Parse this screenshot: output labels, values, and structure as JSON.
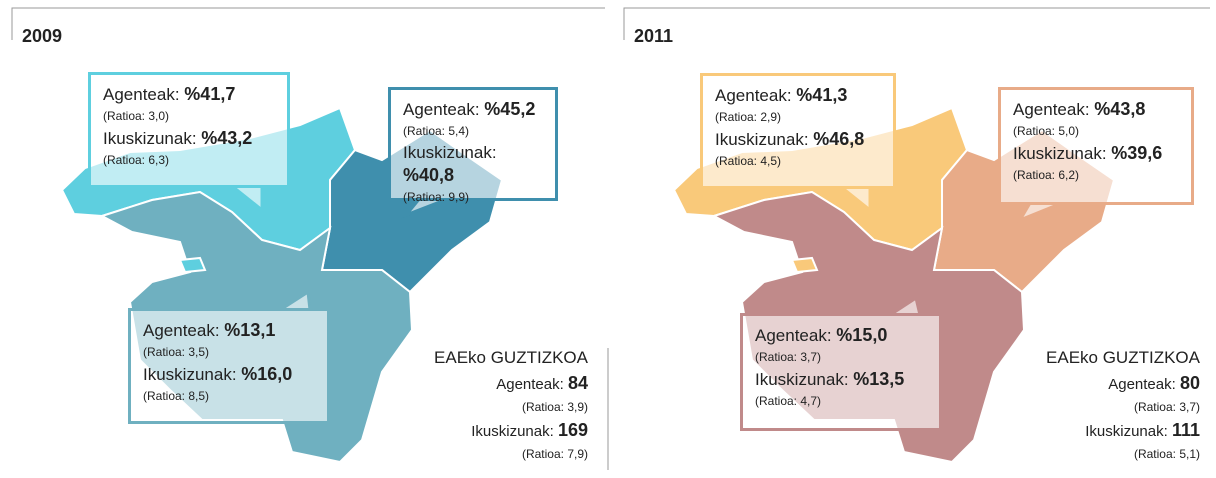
{
  "panels": [
    {
      "year": "2009",
      "callouts": [
        {
          "agents_label": "Agenteak:",
          "agents_value": "%41,7",
          "agents_ratio": "(Ratioa: 3,0)",
          "inspections_label": "Ikuskizunak:",
          "inspections_value": "%43,2",
          "inspections_ratio": "(Ratioa: 6,3)"
        },
        {
          "agents_label": "Agenteak:",
          "agents_value": "%45,2",
          "agents_ratio": "(Ratioa: 5,4)",
          "inspections_label": "Ikuskizunak:",
          "inspections_value": "%40,8",
          "inspections_ratio": "(Ratioa: 9,9)"
        },
        {
          "agents_label": "Agenteak:",
          "agents_value": "%13,1",
          "agents_ratio": "(Ratioa: 3,5)",
          "inspections_label": "Ikuskizunak:",
          "inspections_value": "%16,0",
          "inspections_ratio": "(Ratioa: 8,5)"
        }
      ],
      "total": {
        "title": "EAEko GUZTIZKOA",
        "agents_label": "Agenteak:",
        "agents_value": "84",
        "agents_ratio": "(Ratioa: 3,9)",
        "inspections_label": "Ikuskizunak:",
        "inspections_value": "169",
        "inspections_ratio": "(Ratioa: 7,9)"
      }
    },
    {
      "year": "2011",
      "callouts": [
        {
          "agents_label": "Agenteak:",
          "agents_value": "%41,3",
          "agents_ratio": "(Ratioa: 2,9)",
          "inspections_label": "Ikuskizunak:",
          "inspections_value": "%46,8",
          "inspections_ratio": "(Ratioa: 4,5)"
        },
        {
          "agents_label": "Agenteak:",
          "agents_value": "%43,8",
          "agents_ratio": "(Ratioa: 5,0)",
          "inspections_label": "Ikuskizunak:",
          "inspections_value": "%39,6",
          "inspections_ratio": "(Ratioa: 6,2)"
        },
        {
          "agents_label": "Agenteak:",
          "agents_value": "%15,0",
          "agents_ratio": "(Ratioa: 3,7)",
          "inspections_label": "Ikuskizunak:",
          "inspections_value": "%13,5",
          "inspections_ratio": "(Ratioa: 4,7)"
        }
      ],
      "total": {
        "title": "EAEko GUZTIZKOA",
        "agents_label": "Agenteak:",
        "agents_value": "80",
        "agents_ratio": "(Ratioa: 3,7)",
        "inspections_label": "Ikuskizunak:",
        "inspections_value": "111",
        "inspections_ratio": "(Ratioa: 5,1)"
      }
    }
  ]
}
